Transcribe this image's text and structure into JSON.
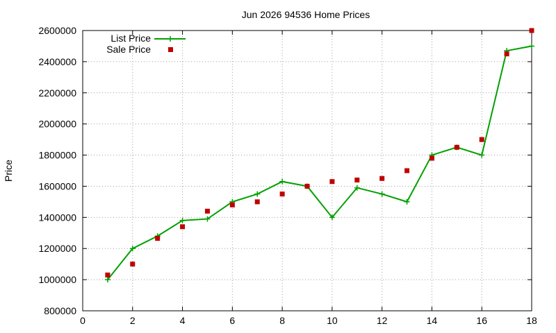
{
  "chart_data": {
    "type": "line",
    "title": "Jun 2026 94536 Home Prices",
    "xlabel": "",
    "ylabel": "Price",
    "xlim": [
      0,
      18
    ],
    "ylim": [
      800000,
      2600000
    ],
    "xticks": [
      0,
      2,
      4,
      6,
      8,
      10,
      12,
      14,
      16,
      18
    ],
    "xtick_labels": [
      "0",
      "2",
      "4",
      "6",
      "8",
      "10",
      "12",
      "14",
      "16",
      "18"
    ],
    "yticks": [
      800000,
      1000000,
      1200000,
      1400000,
      1600000,
      1800000,
      2000000,
      2200000,
      2400000,
      2600000
    ],
    "ytick_labels": [
      "800000",
      "1000000",
      "1200000",
      "1400000",
      "1600000",
      "1800000",
      "2000000",
      "2200000",
      "2400000",
      "2600000"
    ],
    "grid": true,
    "legend_position": "top-left",
    "series": [
      {
        "name": "List Price",
        "style": "linespoints",
        "marker": "plus",
        "color": "#00a000",
        "x": [
          1,
          2,
          3,
          4,
          5,
          6,
          7,
          8,
          9,
          10,
          11,
          12,
          13,
          14,
          15,
          16,
          17,
          18
        ],
        "y": [
          1000000,
          1200000,
          1280000,
          1380000,
          1390000,
          1500000,
          1550000,
          1630000,
          1600000,
          1400000,
          1590000,
          1550000,
          1500000,
          1800000,
          1850000,
          1800000,
          2470000,
          2500000
        ]
      },
      {
        "name": "Sale Price",
        "style": "points",
        "marker": "square",
        "color": "#c00000",
        "x": [
          1,
          2,
          3,
          4,
          5,
          6,
          7,
          8,
          9,
          10,
          11,
          12,
          13,
          14,
          15,
          16,
          17,
          18
        ],
        "y": [
          1030000,
          1100000,
          1265000,
          1340000,
          1440000,
          1480000,
          1500000,
          1550000,
          1600000,
          1630000,
          1640000,
          1650000,
          1700000,
          1780000,
          1850000,
          1900000,
          2450000,
          2600000
        ]
      }
    ]
  }
}
